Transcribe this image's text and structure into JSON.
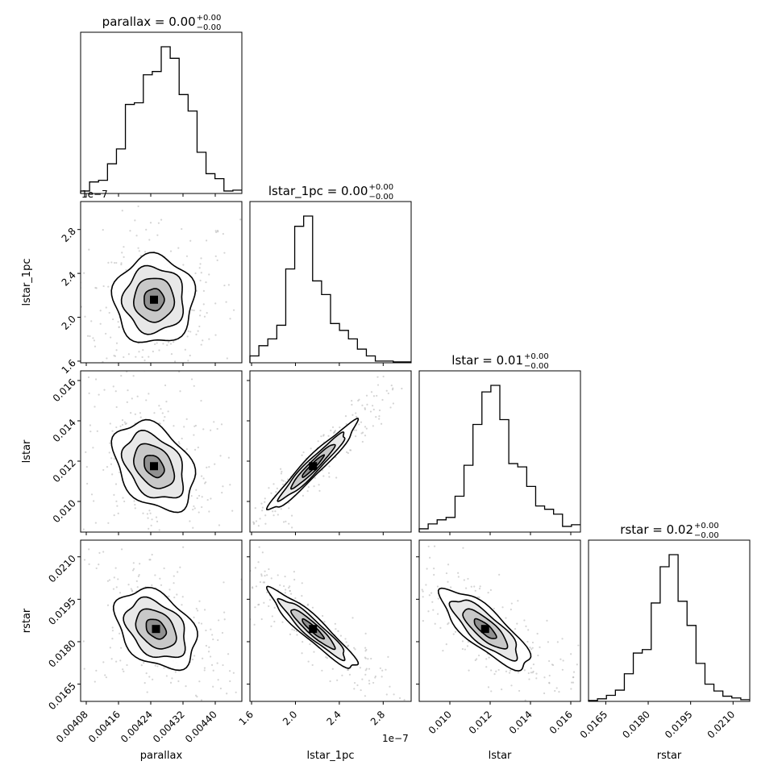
{
  "figure": {
    "titles": [
      {
        "name": "parallax",
        "value": "0.00",
        "plus": "+0.00",
        "minus": "−0.00"
      },
      {
        "name": "lstar_1pc",
        "value": "0.00",
        "plus": "+0.00",
        "minus": "−0.00"
      },
      {
        "name": "lstar",
        "value": "0.01",
        "plus": "+0.00",
        "minus": "−0.00"
      },
      {
        "name": "rstar",
        "value": "0.02",
        "plus": "+0.00",
        "minus": "−0.00"
      }
    ],
    "x_labels": [
      "parallax",
      "lstar_1pc",
      "lstar",
      "rstar"
    ],
    "y_labels": [
      "lstar_1pc",
      "lstar",
      "rstar"
    ],
    "offset_texts": {
      "lstar_1pc_y": "1e−7",
      "lstar_1pc_x": "1e−7"
    }
  },
  "chart_data": {
    "type": "corner",
    "parameters": [
      "parallax",
      "lstar_1pc",
      "lstar",
      "rstar"
    ],
    "axes": {
      "parallax": {
        "range": [
          0.004066,
          0.004466
        ],
        "ticks": [
          0.00408,
          0.00416,
          0.00424,
          0.00432,
          0.0044
        ],
        "tick_labels": [
          "0.00408",
          "0.00416",
          "0.00424",
          "0.00432",
          "0.00440"
        ]
      },
      "lstar_1pc": {
        "range": [
          1.585,
          3.055
        ],
        "ticks": [
          1.6,
          2.0,
          2.4,
          2.8
        ],
        "tick_labels": [
          "1.6",
          "2.0",
          "2.4",
          "2.8"
        ],
        "scale_note": "1e−7"
      },
      "lstar": {
        "range": [
          0.00848,
          0.01648
        ],
        "ticks": [
          0.01,
          0.012,
          0.014,
          0.016
        ],
        "tick_labels": [
          "0.010",
          "0.012",
          "0.014",
          "0.016"
        ]
      },
      "rstar": {
        "range": [
          0.01589,
          0.02159
        ],
        "ticks": [
          0.0165,
          0.018,
          0.0195,
          0.021
        ],
        "tick_labels": [
          "0.0165",
          "0.0180",
          "0.0195",
          "0.0210"
        ]
      }
    },
    "histograms": [
      {
        "param": "parallax",
        "counts": [
          3,
          14,
          16,
          36,
          54,
          108,
          110,
          144,
          148,
          178,
          164,
          120,
          100,
          50,
          24,
          18,
          3,
          4
        ]
      },
      {
        "param": "lstar_1pc",
        "counts": [
          8,
          20,
          28,
          44,
          110,
          160,
          172,
          96,
          80,
          46,
          38,
          28,
          16,
          8,
          2,
          2,
          1,
          1
        ]
      },
      {
        "param": "lstar",
        "counts": [
          4,
          10,
          15,
          18,
          44,
          82,
          132,
          172,
          180,
          138,
          84,
          80,
          56,
          32,
          28,
          22,
          7,
          9
        ]
      },
      {
        "param": "rstar",
        "counts": [
          1,
          3,
          7,
          13,
          32,
          56,
          60,
          114,
          156,
          170,
          116,
          88,
          44,
          20,
          12,
          6,
          4,
          2
        ]
      }
    ],
    "pairs": [
      {
        "x": "parallax",
        "y": "lstar_1pc",
        "mean": [
          0.004248,
          2.16
        ],
        "sd": [
          5e-05,
          0.2
        ],
        "rho": 0
      },
      {
        "x": "parallax",
        "y": "lstar",
        "mean": [
          0.004248,
          0.01175
        ],
        "sd": [
          5e-05,
          0.0011
        ],
        "rho": -0.35
      },
      {
        "x": "parallax",
        "y": "rstar",
        "mean": [
          0.004253,
          0.01845
        ],
        "sd": [
          5e-05,
          0.0007
        ],
        "rho": -0.35
      },
      {
        "x": "lstar_1pc",
        "y": "lstar",
        "mean": [
          2.16,
          0.01175
        ],
        "sd": [
          0.2,
          0.0011
        ],
        "rho": 0.96
      },
      {
        "x": "lstar_1pc",
        "y": "rstar",
        "mean": [
          2.16,
          0.01845
        ],
        "sd": [
          0.2,
          0.0007
        ],
        "rho": -0.93
      },
      {
        "x": "lstar",
        "y": "rstar",
        "mean": [
          0.01175,
          0.01845
        ],
        "sd": [
          0.0011,
          0.0007
        ],
        "rho": -0.8
      }
    ],
    "contour_levels": [
      0.5,
      1.0,
      1.5,
      2.0
    ],
    "grid": false,
    "colors": {
      "line": "#000000",
      "density": "#808080",
      "points": "#b0b0b0"
    }
  }
}
